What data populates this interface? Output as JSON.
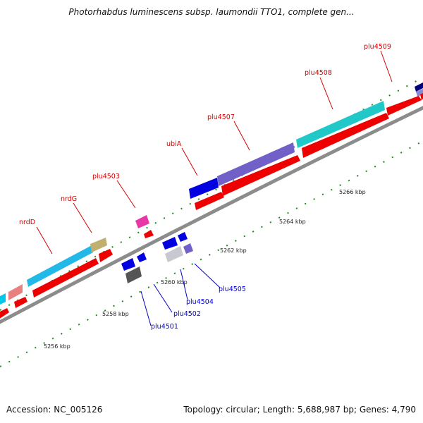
{
  "title": "Photorhabdus luminescens subsp. laumondii TTO1, complete gen...",
  "footer": {
    "accession": "Accession: NC_005126",
    "summary": "Topology: circular; Length: 5,688,987 bp; Genes: 4,790"
  },
  "ticks": [
    "5256 kbp",
    "5258 kbp",
    "5260 kbp",
    "5262 kbp",
    "5264 kbp",
    "5266 kbp"
  ],
  "genes_top": [
    "nrdD",
    "nrdG",
    "plu4503",
    "ubiA",
    "plu4507",
    "plu4508",
    "plu4509"
  ],
  "genes_bottom": [
    "plu4501",
    "plu4502",
    "plu4504",
    "plu4505"
  ],
  "colors": {
    "backbone": "#8c8c8c",
    "tick": "#1a8c1a",
    "cds_forward": "#ff0000",
    "label_top": "#d40000",
    "label_bottom": "#0000c8"
  }
}
